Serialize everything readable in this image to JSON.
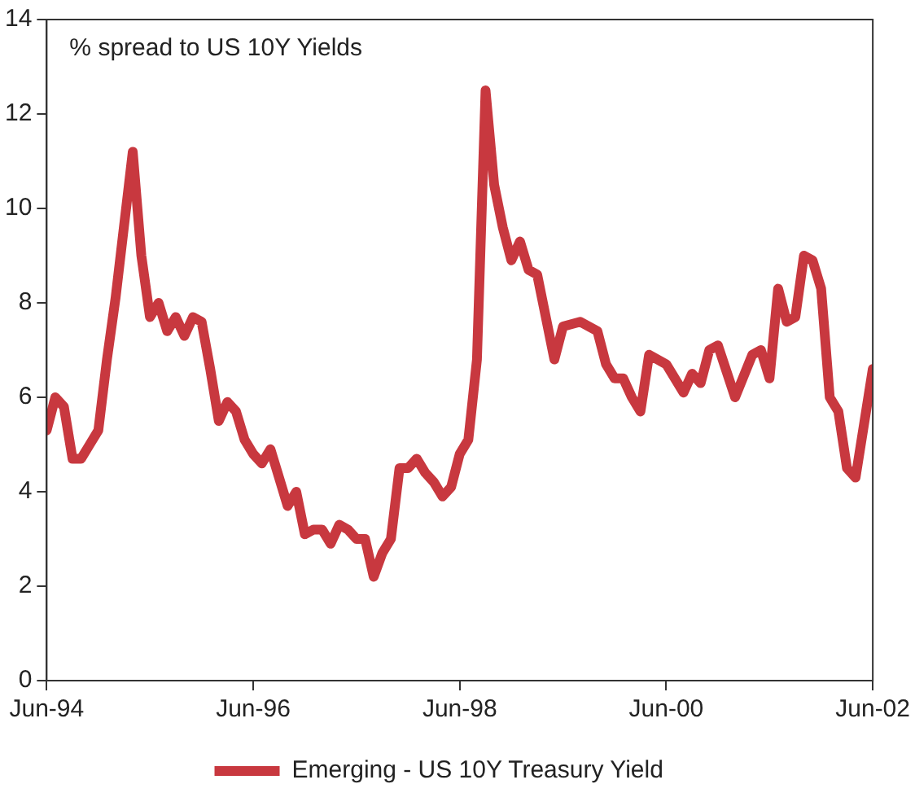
{
  "chart_data": {
    "type": "line",
    "title": "% spread to US 10Y Yields",
    "x": [
      "1994-06",
      "1994-07",
      "1994-08",
      "1994-09",
      "1994-10",
      "1994-11",
      "1994-12",
      "1995-01",
      "1995-02",
      "1995-04",
      "1995-05",
      "1995-06",
      "1995-07",
      "1995-08",
      "1995-09",
      "1995-10",
      "1995-11",
      "1995-12",
      "1996-01",
      "1996-02",
      "1996-03",
      "1996-04",
      "1996-05",
      "1996-06",
      "1996-07",
      "1996-08",
      "1996-09",
      "1996-10",
      "1996-11",
      "1996-12",
      "1997-01",
      "1997-02",
      "1997-03",
      "1997-04",
      "1997-05",
      "1997-06",
      "1997-07",
      "1997-08",
      "1997-09",
      "1997-10",
      "1997-11",
      "1997-12",
      "1998-01",
      "1998-02",
      "1998-03",
      "1998-04",
      "1998-05",
      "1998-06",
      "1998-07",
      "1998-08",
      "1998-09",
      "1998-10",
      "1998-11",
      "1998-12",
      "1999-01",
      "1999-02",
      "1999-03",
      "1999-04",
      "1999-05",
      "1999-06",
      "1999-08",
      "1999-10",
      "1999-11",
      "1999-12",
      "2000-01",
      "2000-02",
      "2000-03",
      "2000-04",
      "2000-06",
      "2000-08",
      "2000-09",
      "2000-10",
      "2000-11",
      "2000-12",
      "2001-02",
      "2001-04",
      "2001-05",
      "2001-06",
      "2001-07",
      "2001-08",
      "2001-09",
      "2001-10",
      "2001-11",
      "2001-12",
      "2002-01",
      "2002-02",
      "2002-03",
      "2002-04",
      "2002-06"
    ],
    "series": [
      {
        "name": "Emerging - US 10Y Treasury Yield",
        "color": "#c8383f",
        "values": [
          5.3,
          6.0,
          5.8,
          4.7,
          4.7,
          5.0,
          5.3,
          6.8,
          8.1,
          11.2,
          9.0,
          7.7,
          8.0,
          7.4,
          7.7,
          7.3,
          7.7,
          7.6,
          6.6,
          5.5,
          5.9,
          5.7,
          5.1,
          4.8,
          4.6,
          4.9,
          4.3,
          3.7,
          4.0,
          3.1,
          3.2,
          3.2,
          2.9,
          3.3,
          3.2,
          3.0,
          3.0,
          2.2,
          2.7,
          3.0,
          4.5,
          4.5,
          4.7,
          4.4,
          4.2,
          3.9,
          4.1,
          4.8,
          5.1,
          6.8,
          12.5,
          10.5,
          9.6,
          8.9,
          9.3,
          8.7,
          8.6,
          7.7,
          6.8,
          7.5,
          7.6,
          7.4,
          6.7,
          6.4,
          6.4,
          6.0,
          5.7,
          6.9,
          6.7,
          6.1,
          6.5,
          6.3,
          7.0,
          7.1,
          6.0,
          6.9,
          7.0,
          6.4,
          8.3,
          7.6,
          7.7,
          9.0,
          8.9,
          8.3,
          6.0,
          5.7,
          4.5,
          4.3,
          6.6
        ]
      }
    ],
    "xlim": [
      "1994-06",
      "2002-06"
    ],
    "xticks": [
      {
        "value": "1994-06",
        "label": "Jun-94"
      },
      {
        "value": "1996-06",
        "label": "Jun-96"
      },
      {
        "value": "1998-06",
        "label": "Jun-98"
      },
      {
        "value": "2000-06",
        "label": "Jun-00"
      },
      {
        "value": "2002-06",
        "label": "Jun-02"
      }
    ],
    "ylim": [
      0,
      14
    ],
    "yticks": [
      0,
      2,
      4,
      6,
      8,
      10,
      12,
      14
    ],
    "grid": false,
    "legend": "bottom",
    "marker": "none",
    "line_style": "solid"
  }
}
